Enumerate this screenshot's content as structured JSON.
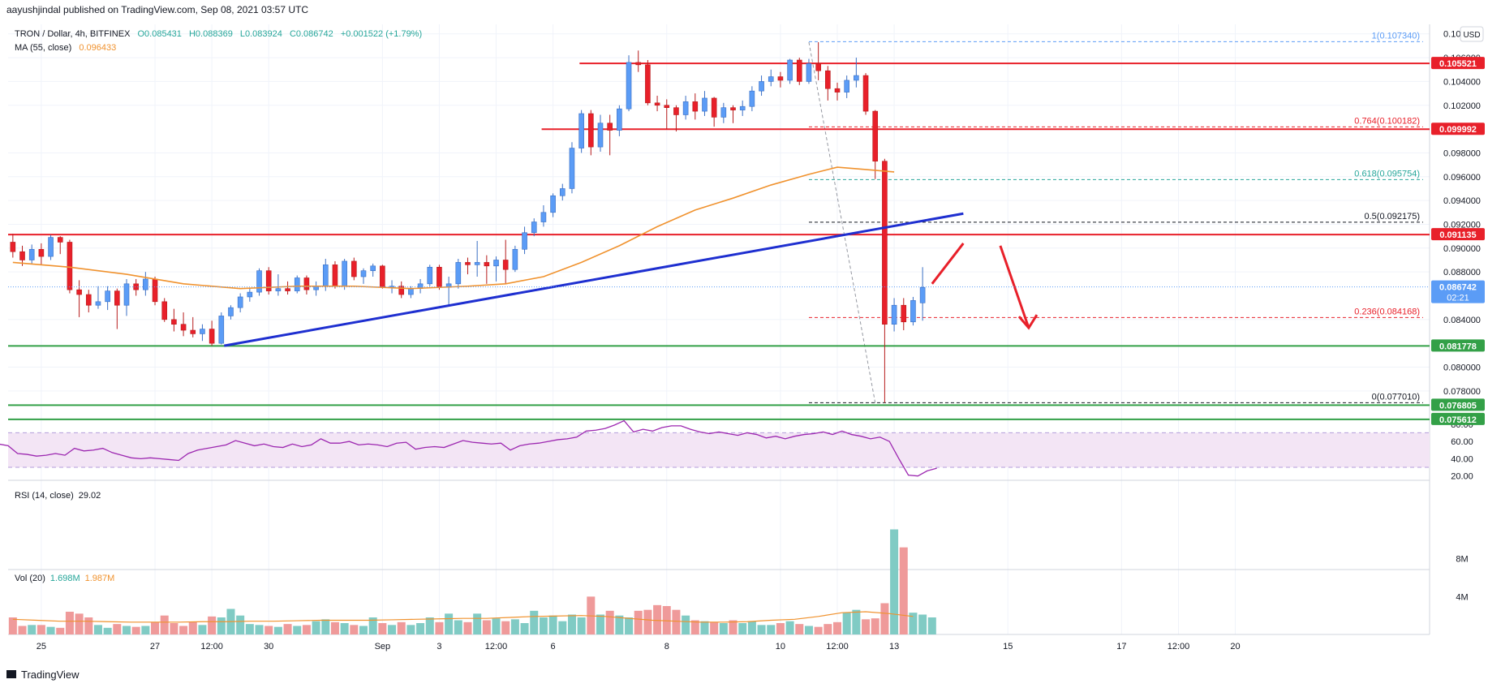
{
  "header": {
    "published": "aayushjindal published on TradingView.com, Sep 08, 2021 03:57 UTC",
    "symbol": "TRON / Dollar, 4h, BITFINEX",
    "ohlc": {
      "open": "O0.085431",
      "high": "H0.088369",
      "low": "L0.083924",
      "close": "C0.086742",
      "change": "+0.001522 (+1.79%)"
    },
    "ma_label": "MA (55, close)",
    "ma_value": "0.096433"
  },
  "footer": {
    "logo_text": "TradingView"
  },
  "currency_button": "USD",
  "colors": {
    "up": "#5b9cf6",
    "down": "#e8202a",
    "ma": "#f0922e",
    "trendline": "#1e2fd0",
    "resistance": "#e8202a",
    "support": "#33a047",
    "fib": "#26a69a",
    "rsi": "#9c27b0",
    "rsi_band": "#f3e5f5",
    "vol_up": "#80cbc4",
    "vol_down": "#ef9a9a"
  },
  "chart_data": {
    "type": "candlestick",
    "x_axis": {
      "ticks": [
        "25",
        "27",
        "12:00",
        "30",
        "Sep",
        "3",
        "12:00",
        "6",
        "8",
        "10",
        "12:00",
        "13",
        "15",
        "17",
        "12:00",
        "20"
      ],
      "tick_positions": [
        3.5,
        15.5,
        21.5,
        27.5,
        39.5,
        45.5,
        51.5,
        57.5,
        69.5,
        81.5,
        87.5,
        93.5,
        105.5,
        117.5,
        123.5,
        129.5
      ]
    },
    "y_axis": {
      "ticks": [
        "0.078000",
        "0.080000",
        "0.084000",
        "0.088000",
        "0.090000",
        "0.092000",
        "0.094000",
        "0.096000",
        "0.098000",
        "0.102000",
        "0.104000",
        "0.106000",
        "0.108000"
      ],
      "range": [
        0.0754,
        0.1088
      ]
    },
    "candles": [
      [
        0.0905,
        0.0912,
        0.0892,
        0.0897
      ],
      [
        0.0897,
        0.0902,
        0.0885,
        0.089
      ],
      [
        0.089,
        0.0903,
        0.0887,
        0.0899
      ],
      [
        0.0899,
        0.0904,
        0.0886,
        0.0893
      ],
      [
        0.0893,
        0.0911,
        0.089,
        0.0909
      ],
      [
        0.0909,
        0.091,
        0.0895,
        0.0905
      ],
      [
        0.0905,
        0.0907,
        0.0862,
        0.0865
      ],
      [
        0.0865,
        0.0873,
        0.0842,
        0.0861
      ],
      [
        0.0861,
        0.0865,
        0.0846,
        0.0852
      ],
      [
        0.0852,
        0.0868,
        0.0849,
        0.0855
      ],
      [
        0.0855,
        0.0868,
        0.0848,
        0.0864
      ],
      [
        0.0864,
        0.0866,
        0.0832,
        0.0852
      ],
      [
        0.0852,
        0.0874,
        0.0843,
        0.087
      ],
      [
        0.087,
        0.0874,
        0.086,
        0.0865
      ],
      [
        0.0865,
        0.088,
        0.086,
        0.0874
      ],
      [
        0.0874,
        0.0876,
        0.0852,
        0.0855
      ],
      [
        0.0855,
        0.0858,
        0.0838,
        0.084
      ],
      [
        0.084,
        0.0849,
        0.083,
        0.0836
      ],
      [
        0.0836,
        0.0846,
        0.0826,
        0.0831
      ],
      [
        0.0831,
        0.0842,
        0.0825,
        0.0828
      ],
      [
        0.0828,
        0.0836,
        0.0822,
        0.0832
      ],
      [
        0.0832,
        0.0839,
        0.0818,
        0.082
      ],
      [
        0.082,
        0.0846,
        0.0819,
        0.0843
      ],
      [
        0.0843,
        0.0852,
        0.084,
        0.085
      ],
      [
        0.085,
        0.0862,
        0.0846,
        0.0859
      ],
      [
        0.0859,
        0.0866,
        0.0855,
        0.0863
      ],
      [
        0.0863,
        0.0883,
        0.086,
        0.0881
      ],
      [
        0.0881,
        0.0884,
        0.0861,
        0.0864
      ],
      [
        0.0864,
        0.0878,
        0.086,
        0.0866
      ],
      [
        0.0866,
        0.0872,
        0.0861,
        0.0864
      ],
      [
        0.0864,
        0.0877,
        0.0862,
        0.0875
      ],
      [
        0.0875,
        0.0877,
        0.0861,
        0.0865
      ],
      [
        0.0865,
        0.0872,
        0.086,
        0.0868
      ],
      [
        0.0868,
        0.0891,
        0.0864,
        0.0886
      ],
      [
        0.0886,
        0.0889,
        0.0866,
        0.0868
      ],
      [
        0.0868,
        0.0891,
        0.0865,
        0.0889
      ],
      [
        0.0889,
        0.0892,
        0.0873,
        0.0876
      ],
      [
        0.0876,
        0.0883,
        0.087,
        0.0881
      ],
      [
        0.0881,
        0.0887,
        0.0876,
        0.0885
      ],
      [
        0.0885,
        0.0886,
        0.0866,
        0.0867
      ],
      [
        0.0867,
        0.0873,
        0.0862,
        0.0868
      ],
      [
        0.0868,
        0.0872,
        0.0858,
        0.0861
      ],
      [
        0.0861,
        0.0868,
        0.0858,
        0.0866
      ],
      [
        0.0866,
        0.0874,
        0.0862,
        0.087
      ],
      [
        0.087,
        0.0886,
        0.0868,
        0.0884
      ],
      [
        0.0884,
        0.0886,
        0.0865,
        0.0867
      ],
      [
        0.0867,
        0.0876,
        0.0852,
        0.087
      ],
      [
        0.087,
        0.0891,
        0.0866,
        0.0888
      ],
      [
        0.0888,
        0.0892,
        0.0878,
        0.0886
      ],
      [
        0.0886,
        0.0906,
        0.0876,
        0.0888
      ],
      [
        0.0888,
        0.0894,
        0.087,
        0.0885
      ],
      [
        0.0885,
        0.0893,
        0.0872,
        0.089
      ],
      [
        0.089,
        0.0907,
        0.087,
        0.0882
      ],
      [
        0.0882,
        0.0902,
        0.088,
        0.0899
      ],
      [
        0.0899,
        0.0918,
        0.0895,
        0.0913
      ],
      [
        0.0913,
        0.0925,
        0.091,
        0.0922
      ],
      [
        0.0922,
        0.0936,
        0.0918,
        0.093
      ],
      [
        0.093,
        0.0946,
        0.0926,
        0.0944
      ],
      [
        0.0944,
        0.0954,
        0.094,
        0.095
      ],
      [
        0.095,
        0.0989,
        0.0946,
        0.0984
      ],
      [
        0.0984,
        0.1016,
        0.098,
        0.1013
      ],
      [
        0.1013,
        0.1016,
        0.0978,
        0.0985
      ],
      [
        0.0985,
        0.1012,
        0.0981,
        0.1005
      ],
      [
        0.1005,
        0.1012,
        0.0978,
        0.0999
      ],
      [
        0.0999,
        0.102,
        0.0994,
        0.1017
      ],
      [
        0.1017,
        0.1062,
        0.1015,
        0.1056
      ],
      [
        0.1056,
        0.1066,
        0.1048,
        0.1054
      ],
      [
        0.1054,
        0.1058,
        0.102,
        0.1022
      ],
      [
        0.1022,
        0.1028,
        0.1015,
        0.102
      ],
      [
        0.102,
        0.1025,
        0.1,
        0.1018
      ],
      [
        0.1018,
        0.102,
        0.0998,
        0.1012
      ],
      [
        0.1012,
        0.1028,
        0.1008,
        0.1023
      ],
      [
        0.1023,
        0.103,
        0.1008,
        0.1015
      ],
      [
        0.1015,
        0.1032,
        0.1011,
        0.1026
      ],
      [
        0.1026,
        0.1027,
        0.1002,
        0.101
      ],
      [
        0.101,
        0.1022,
        0.1005,
        0.1018
      ],
      [
        0.1018,
        0.102,
        0.1005,
        0.1016
      ],
      [
        0.1016,
        0.1024,
        0.1011,
        0.1019
      ],
      [
        0.1019,
        0.1036,
        0.1015,
        0.1032
      ],
      [
        0.1032,
        0.1045,
        0.1028,
        0.104
      ],
      [
        0.104,
        0.105,
        0.1036,
        0.1044
      ],
      [
        0.1044,
        0.1048,
        0.1035,
        0.1041
      ],
      [
        0.1041,
        0.1059,
        0.1038,
        0.1058
      ],
      [
        0.1058,
        0.106,
        0.1037,
        0.104
      ],
      [
        0.104,
        0.1059,
        0.1038,
        0.1055
      ],
      [
        0.1055,
        0.1073,
        0.1041,
        0.1049
      ],
      [
        0.1049,
        0.1053,
        0.1024,
        0.1034
      ],
      [
        0.1034,
        0.1039,
        0.1024,
        0.1031
      ],
      [
        0.1031,
        0.1045,
        0.1026,
        0.1041
      ],
      [
        0.1041,
        0.106,
        0.1035,
        0.1045
      ],
      [
        0.1045,
        0.1047,
        0.1012,
        0.1015
      ],
      [
        0.1015,
        0.1016,
        0.0958,
        0.0973
      ],
      [
        0.0973,
        0.0975,
        0.077,
        0.0836
      ],
      [
        0.0836,
        0.0858,
        0.083,
        0.0852
      ],
      [
        0.0852,
        0.0858,
        0.0831,
        0.0838
      ],
      [
        0.0838,
        0.0859,
        0.0835,
        0.0856
      ],
      [
        0.0854,
        0.0884,
        0.0839,
        0.0867
      ]
    ],
    "ma55": [
      [
        0,
        0.0888
      ],
      [
        6,
        0.0884
      ],
      [
        12,
        0.0878
      ],
      [
        18,
        0.087
      ],
      [
        24,
        0.0866
      ],
      [
        30,
        0.0868
      ],
      [
        36,
        0.0868
      ],
      [
        42,
        0.0866
      ],
      [
        48,
        0.0868
      ],
      [
        52,
        0.087
      ],
      [
        56,
        0.0876
      ],
      [
        60,
        0.0888
      ],
      [
        64,
        0.0902
      ],
      [
        68,
        0.0918
      ],
      [
        72,
        0.0932
      ],
      [
        76,
        0.0942
      ],
      [
        80,
        0.0953
      ],
      [
        84,
        0.0962
      ],
      [
        87,
        0.0968
      ],
      [
        90,
        0.0966
      ],
      [
        93,
        0.0964
      ]
    ],
    "trendline": [
      [
        22.3,
        0.0818
      ],
      [
        100.3,
        0.0929
      ]
    ],
    "resistance_lines": [
      {
        "value": 0.105521,
        "label": "0.105521",
        "from": 59.8
      },
      {
        "value": 0.099992,
        "label": "0.099992",
        "from": 55.8
      },
      {
        "value": 0.091135,
        "label": "0.091135",
        "from": 0
      }
    ],
    "support_lines": [
      {
        "value": 0.081778,
        "label": "0.081778"
      },
      {
        "value": 0.076805,
        "label": "0.076805"
      },
      {
        "value": 0.075612,
        "label": "0.075612"
      }
    ],
    "fib_levels": [
      {
        "ratio": "1",
        "value": 0.10734,
        "label": "1(0.107340)",
        "color": "#5b9cf6"
      },
      {
        "ratio": "0.764",
        "value": 0.100182,
        "label": "0.764(0.100182)",
        "color": "#e8202a"
      },
      {
        "ratio": "0.618",
        "value": 0.095754,
        "label": "0.618(0.095754)",
        "color": "#26a69a"
      },
      {
        "ratio": "0.5",
        "value": 0.092175,
        "label": "0.5(0.092175)",
        "color": "#131722"
      },
      {
        "ratio": "0.236",
        "value": 0.084168,
        "label": "0.236(0.084168)",
        "color": "#e8202a"
      },
      {
        "ratio": "0",
        "value": 0.07701,
        "label": "0(0.077010)",
        "color": "#131722"
      }
    ],
    "fib_range": [
      84,
      160
    ],
    "fib_diagonal": [
      [
        84,
        0.1073
      ],
      [
        91,
        0.077
      ]
    ],
    "last_price": {
      "value": 0.086742,
      "label": "0.086742",
      "countdown": "02:21"
    },
    "projection": {
      "up": [
        [
          97,
          0.087
        ],
        [
          100.3,
          0.0904
        ]
      ],
      "down": [
        [
          104.2,
          0.0902
        ],
        [
          107.2,
          0.0833
        ]
      ]
    },
    "rsi": {
      "label": "RSI (14, close)",
      "value": "29.02",
      "ticks": [
        "80.00",
        "60.00",
        "40.00",
        "20.00"
      ],
      "range": [
        15,
        92
      ],
      "upper": 70,
      "lower": 30,
      "series": [
        55,
        57,
        54,
        56,
        53,
        57,
        55,
        46,
        45,
        43,
        44,
        46,
        44,
        52,
        49,
        50,
        52,
        47,
        44,
        41,
        40,
        41,
        40,
        39,
        38,
        46,
        50,
        52,
        54,
        56,
        61,
        58,
        55,
        57,
        54,
        53,
        57,
        54,
        56,
        63,
        58,
        58,
        60,
        56,
        57,
        56,
        54,
        58,
        59,
        51,
        53,
        54,
        53,
        57,
        61,
        59,
        58,
        57,
        58,
        50,
        55,
        57,
        58,
        60,
        62,
        63,
        65,
        72,
        73,
        75,
        79,
        84,
        71,
        74,
        72,
        76,
        78,
        78,
        74,
        71,
        69,
        71,
        69,
        67,
        70,
        68,
        64,
        66,
        63,
        66,
        68,
        69,
        71,
        68,
        72,
        68,
        66,
        63,
        65,
        60,
        40,
        21,
        20,
        26,
        29
      ]
    },
    "volume": {
      "label": "Vol (20)",
      "value": "1.698M",
      "ma_value": "1.987M",
      "ticks": [
        "8M",
        "4M"
      ],
      "max": 12,
      "values": [
        1.8,
        0.9,
        1.0,
        1.0,
        0.8,
        0.7,
        2.4,
        2.2,
        1.8,
        1.0,
        0.7,
        1.1,
        0.9,
        0.8,
        0.9,
        1.3,
        2.0,
        1.2,
        0.9,
        1.3,
        1.0,
        1.9,
        1.8,
        2.7,
        2.0,
        1.1,
        1.0,
        0.9,
        0.8,
        1.1,
        0.9,
        1.0,
        1.4,
        1.6,
        1.3,
        1.2,
        1.0,
        0.9,
        1.8,
        1.2,
        1.0,
        1.3,
        1.0,
        1.2,
        1.8,
        1.3,
        2.2,
        1.5,
        1.3,
        2.2,
        1.5,
        1.7,
        1.4,
        1.6,
        1.2,
        2.5,
        1.8,
        2.0,
        1.4,
        2.1,
        1.8,
        4.0,
        2.1,
        2.5,
        2.0,
        1.8,
        2.5,
        2.6,
        3.1,
        3.0,
        2.6,
        2.0,
        1.5,
        1.4,
        1.3,
        1.2,
        1.5,
        1.2,
        1.4,
        1.0,
        1.0,
        1.2,
        1.4,
        1.1,
        0.9,
        0.8,
        1.1,
        1.3,
        2.3,
        2.6,
        1.6,
        1.7,
        3.3,
        11.1,
        9.2,
        2.3,
        2.1,
        1.8
      ],
      "ma": [
        1.6,
        1.5,
        1.4,
        1.4,
        1.35,
        1.3,
        1.3,
        1.3,
        1.35,
        1.35,
        1.4,
        1.4,
        1.45,
        1.5,
        1.5,
        1.5,
        1.55,
        1.6,
        1.65,
        1.7,
        1.7,
        1.8,
        1.9,
        1.95,
        2.0,
        1.9,
        1.7,
        1.5,
        1.4,
        1.3,
        1.3,
        1.35,
        1.5,
        1.6,
        1.9,
        2.3,
        2.4,
        2.2,
        1.9
      ]
    }
  }
}
